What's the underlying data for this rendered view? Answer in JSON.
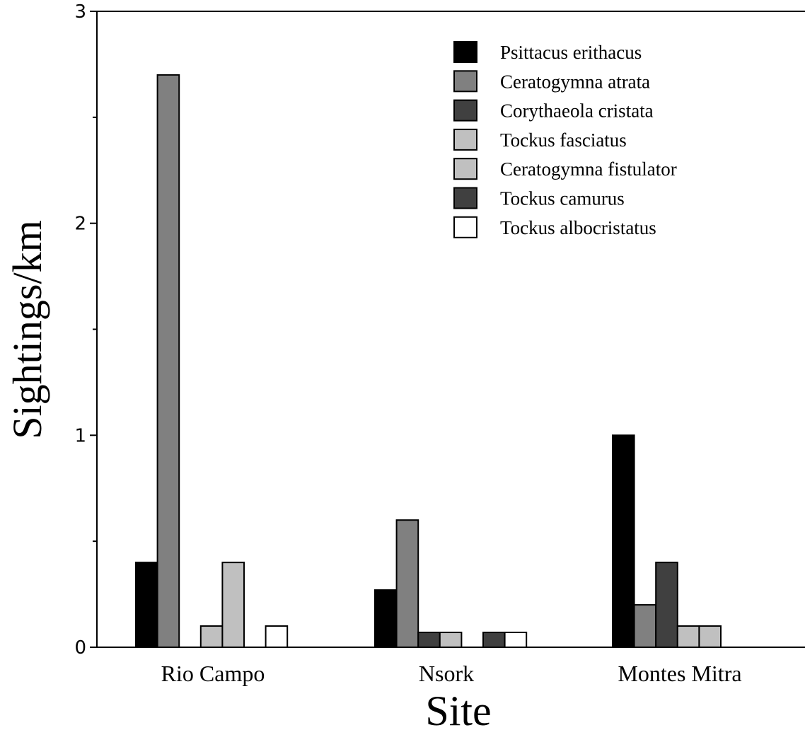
{
  "chart_data": {
    "type": "bar",
    "xlabel": "Site",
    "ylabel": "Sightings/km",
    "ylim": [
      0,
      3
    ],
    "yticks": [
      0,
      1,
      2,
      3
    ],
    "yminor": [
      0.5,
      1.5,
      2.5
    ],
    "categories": [
      "Rio Campo",
      "Nsork",
      "Montes Mitra"
    ],
    "legend_position": "top-right",
    "series": [
      {
        "name": "Psittacus erithacus",
        "color": "#000000",
        "values": [
          0.4,
          0.27,
          1.0
        ]
      },
      {
        "name": "Ceratogymna atrata",
        "color": "#808080",
        "values": [
          2.7,
          0.6,
          0.2
        ]
      },
      {
        "name": "Corythaeola cristata",
        "color": "#404040",
        "values": [
          0,
          0.07,
          0.4
        ]
      },
      {
        "name": "Tockus fasciatus",
        "color": "#c0c0c0",
        "values": [
          0.1,
          0.07,
          0.1
        ]
      },
      {
        "name": "Ceratogymna fistulator",
        "color": "#c0c0c0",
        "values": [
          0.4,
          0,
          0.1
        ]
      },
      {
        "name": "Tockus camurus",
        "color": "#404040",
        "values": [
          0,
          0.07,
          0
        ]
      },
      {
        "name": "Tockus albocristatus",
        "color": "#ffffff",
        "values": [
          0.1,
          0.07,
          0
        ]
      }
    ]
  }
}
